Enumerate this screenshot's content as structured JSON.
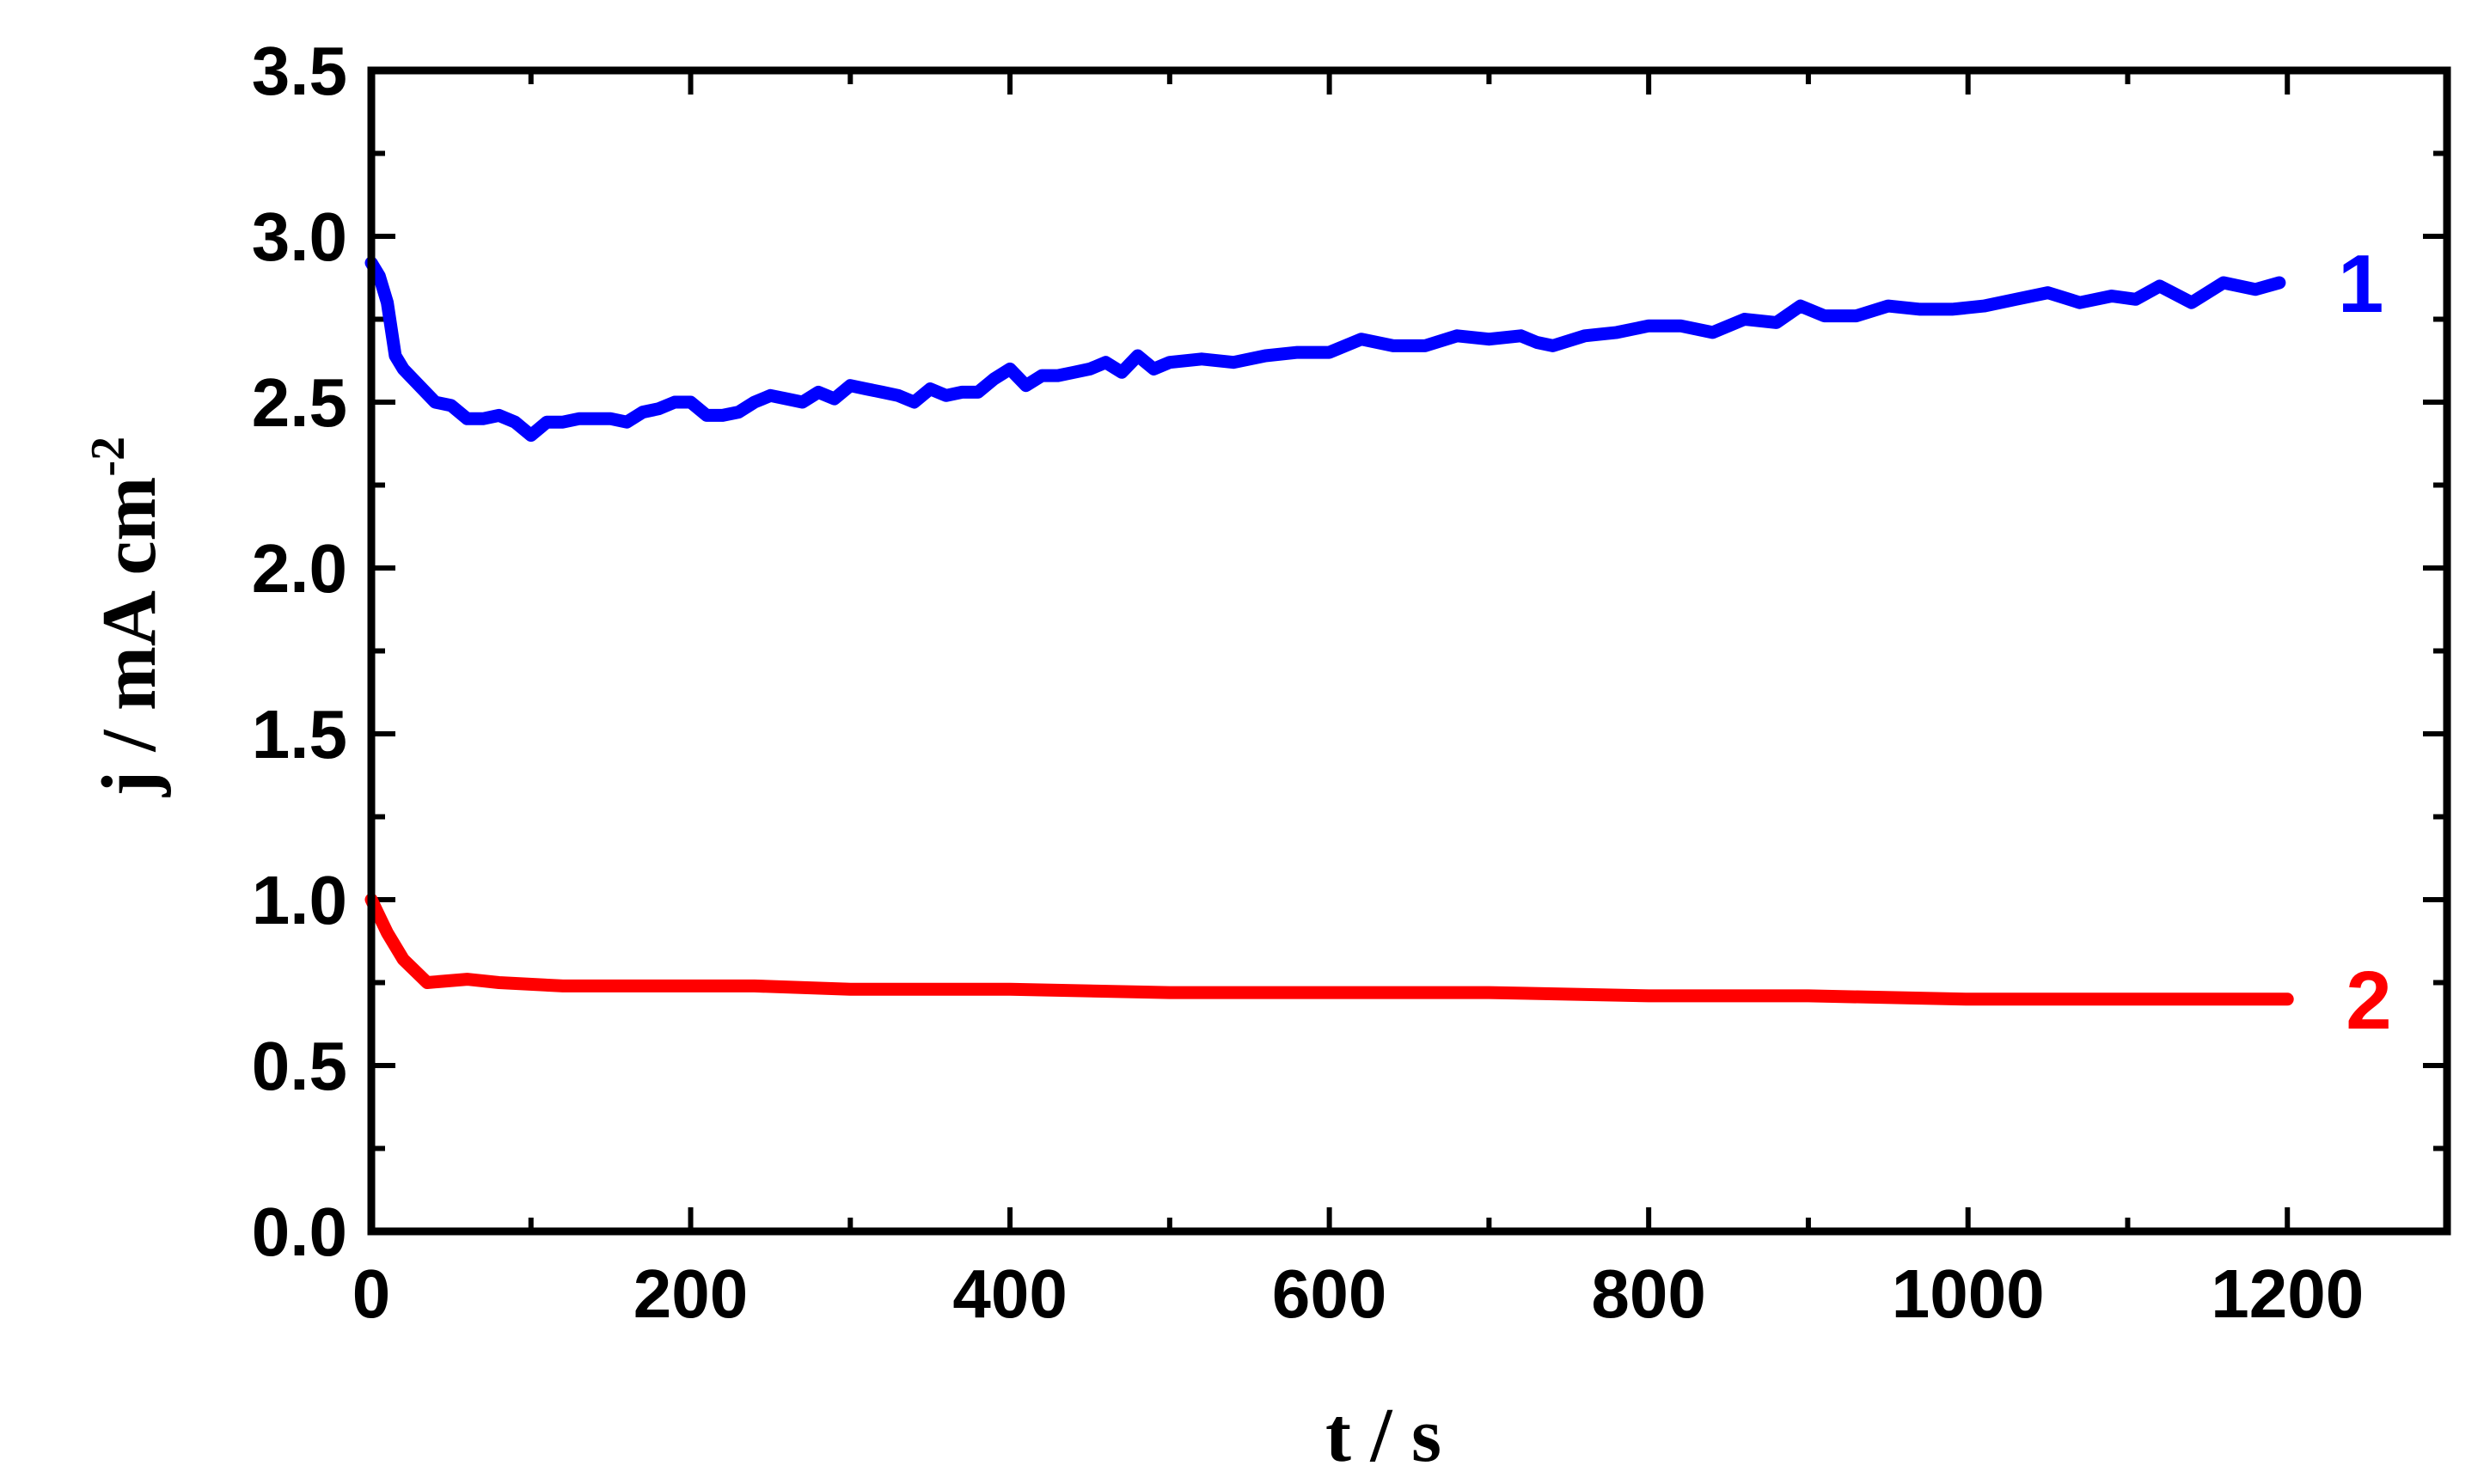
{
  "chart_data": {
    "type": "line",
    "title": "",
    "xlabel": "t / s",
    "ylabel": {
      "main": "j / mA cm",
      "superscript": "-2"
    },
    "xlim": [
      0,
      1300
    ],
    "ylim": [
      0,
      3.5
    ],
    "xticks": [
      {
        "value": 0,
        "label": "0"
      },
      {
        "value": 200,
        "label": "200"
      },
      {
        "value": 400,
        "label": "400"
      },
      {
        "value": 600,
        "label": "600"
      },
      {
        "value": 800,
        "label": "800"
      },
      {
        "value": 1000,
        "label": "1000"
      },
      {
        "value": 1200,
        "label": "1200"
      }
    ],
    "yticks": [
      {
        "value": 0.0,
        "label": "0.0"
      },
      {
        "value": 0.5,
        "label": "0.5"
      },
      {
        "value": 1.0,
        "label": "1.0"
      },
      {
        "value": 1.5,
        "label": "1.5"
      },
      {
        "value": 2.0,
        "label": "2.0"
      },
      {
        "value": 2.5,
        "label": "2.5"
      },
      {
        "value": 3.0,
        "label": "3.0"
      },
      {
        "value": 3.5,
        "label": "3.5"
      }
    ],
    "grid": false,
    "legend": "none",
    "series": [
      {
        "name": "1",
        "color": "#0000ff",
        "points": [
          [
            0,
            2.92
          ],
          [
            5,
            2.88
          ],
          [
            10,
            2.8
          ],
          [
            15,
            2.64
          ],
          [
            20,
            2.6
          ],
          [
            30,
            2.55
          ],
          [
            40,
            2.5
          ],
          [
            50,
            2.49
          ],
          [
            60,
            2.45
          ],
          [
            70,
            2.45
          ],
          [
            80,
            2.46
          ],
          [
            90,
            2.44
          ],
          [
            100,
            2.4
          ],
          [
            110,
            2.44
          ],
          [
            120,
            2.44
          ],
          [
            130,
            2.45
          ],
          [
            140,
            2.45
          ],
          [
            150,
            2.45
          ],
          [
            160,
            2.44
          ],
          [
            170,
            2.47
          ],
          [
            180,
            2.48
          ],
          [
            190,
            2.5
          ],
          [
            200,
            2.5
          ],
          [
            210,
            2.46
          ],
          [
            220,
            2.46
          ],
          [
            230,
            2.47
          ],
          [
            240,
            2.5
          ],
          [
            250,
            2.52
          ],
          [
            260,
            2.51
          ],
          [
            270,
            2.5
          ],
          [
            280,
            2.53
          ],
          [
            290,
            2.51
          ],
          [
            300,
            2.55
          ],
          [
            310,
            2.54
          ],
          [
            320,
            2.53
          ],
          [
            330,
            2.52
          ],
          [
            340,
            2.5
          ],
          [
            350,
            2.54
          ],
          [
            360,
            2.52
          ],
          [
            370,
            2.53
          ],
          [
            380,
            2.53
          ],
          [
            390,
            2.57
          ],
          [
            400,
            2.6
          ],
          [
            410,
            2.55
          ],
          [
            420,
            2.58
          ],
          [
            430,
            2.58
          ],
          [
            440,
            2.59
          ],
          [
            450,
            2.6
          ],
          [
            460,
            2.62
          ],
          [
            470,
            2.59
          ],
          [
            480,
            2.64
          ],
          [
            490,
            2.6
          ],
          [
            500,
            2.62
          ],
          [
            520,
            2.63
          ],
          [
            540,
            2.62
          ],
          [
            560,
            2.64
          ],
          [
            580,
            2.65
          ],
          [
            600,
            2.65
          ],
          [
            620,
            2.69
          ],
          [
            640,
            2.67
          ],
          [
            660,
            2.67
          ],
          [
            680,
            2.7
          ],
          [
            700,
            2.69
          ],
          [
            720,
            2.7
          ],
          [
            730,
            2.68
          ],
          [
            740,
            2.67
          ],
          [
            760,
            2.7
          ],
          [
            780,
            2.71
          ],
          [
            800,
            2.73
          ],
          [
            820,
            2.73
          ],
          [
            840,
            2.71
          ],
          [
            860,
            2.75
          ],
          [
            880,
            2.74
          ],
          [
            895,
            2.79
          ],
          [
            910,
            2.76
          ],
          [
            930,
            2.76
          ],
          [
            950,
            2.79
          ],
          [
            970,
            2.78
          ],
          [
            990,
            2.78
          ],
          [
            1010,
            2.79
          ],
          [
            1030,
            2.81
          ],
          [
            1050,
            2.83
          ],
          [
            1070,
            2.8
          ],
          [
            1090,
            2.82
          ],
          [
            1105,
            2.81
          ],
          [
            1120,
            2.85
          ],
          [
            1140,
            2.8
          ],
          [
            1160,
            2.86
          ],
          [
            1180,
            2.84
          ],
          [
            1195,
            2.86
          ]
        ]
      },
      {
        "name": "2",
        "color": "#ff0000",
        "points": [
          [
            0,
            1.0
          ],
          [
            10,
            0.9
          ],
          [
            20,
            0.82
          ],
          [
            35,
            0.75
          ],
          [
            60,
            0.76
          ],
          [
            80,
            0.75
          ],
          [
            120,
            0.74
          ],
          [
            160,
            0.74
          ],
          [
            200,
            0.74
          ],
          [
            240,
            0.74
          ],
          [
            300,
            0.73
          ],
          [
            400,
            0.73
          ],
          [
            500,
            0.72
          ],
          [
            600,
            0.72
          ],
          [
            700,
            0.72
          ],
          [
            800,
            0.71
          ],
          [
            900,
            0.71
          ],
          [
            1000,
            0.7
          ],
          [
            1100,
            0.7
          ],
          [
            1200,
            0.7
          ]
        ]
      }
    ]
  }
}
